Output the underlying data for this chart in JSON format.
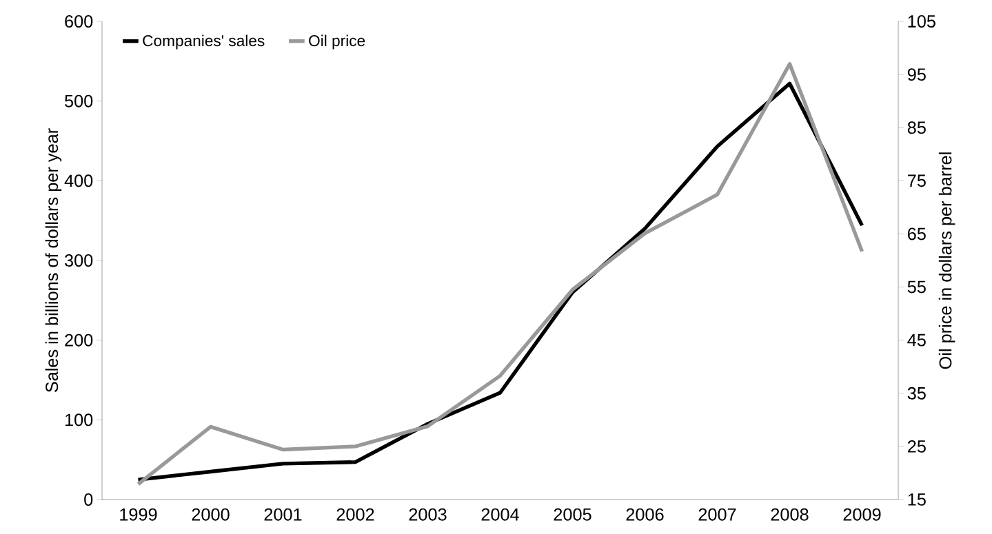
{
  "chart_data": {
    "type": "line",
    "categories": [
      "1999",
      "2000",
      "2001",
      "2002",
      "2003",
      "2004",
      "2005",
      "2006",
      "2007",
      "2008",
      "2009"
    ],
    "ylabel": "Sales in billions of dollars per year",
    "y2label": "Oil price in dollars per barrel",
    "ylim": [
      0,
      600
    ],
    "yticks": [
      0,
      100,
      200,
      300,
      400,
      500,
      600
    ],
    "y2lim": [
      15,
      105
    ],
    "y2ticks": [
      15,
      25,
      35,
      45,
      55,
      65,
      75,
      85,
      95,
      105
    ],
    "legend": "top left",
    "series": [
      {
        "name": "Companies' sales",
        "color": "#000000",
        "values": [
          25,
          35,
          45,
          47,
          95,
          134,
          260,
          340,
          443,
          522,
          344
        ]
      },
      {
        "name": "Oil price",
        "color": "#999999",
        "axis": "y2",
        "values": [
          17.9,
          28.7,
          24.4,
          25.0,
          28.8,
          38.3,
          54.5,
          65.1,
          72.4,
          97.0,
          61.7
        ]
      }
    ]
  }
}
